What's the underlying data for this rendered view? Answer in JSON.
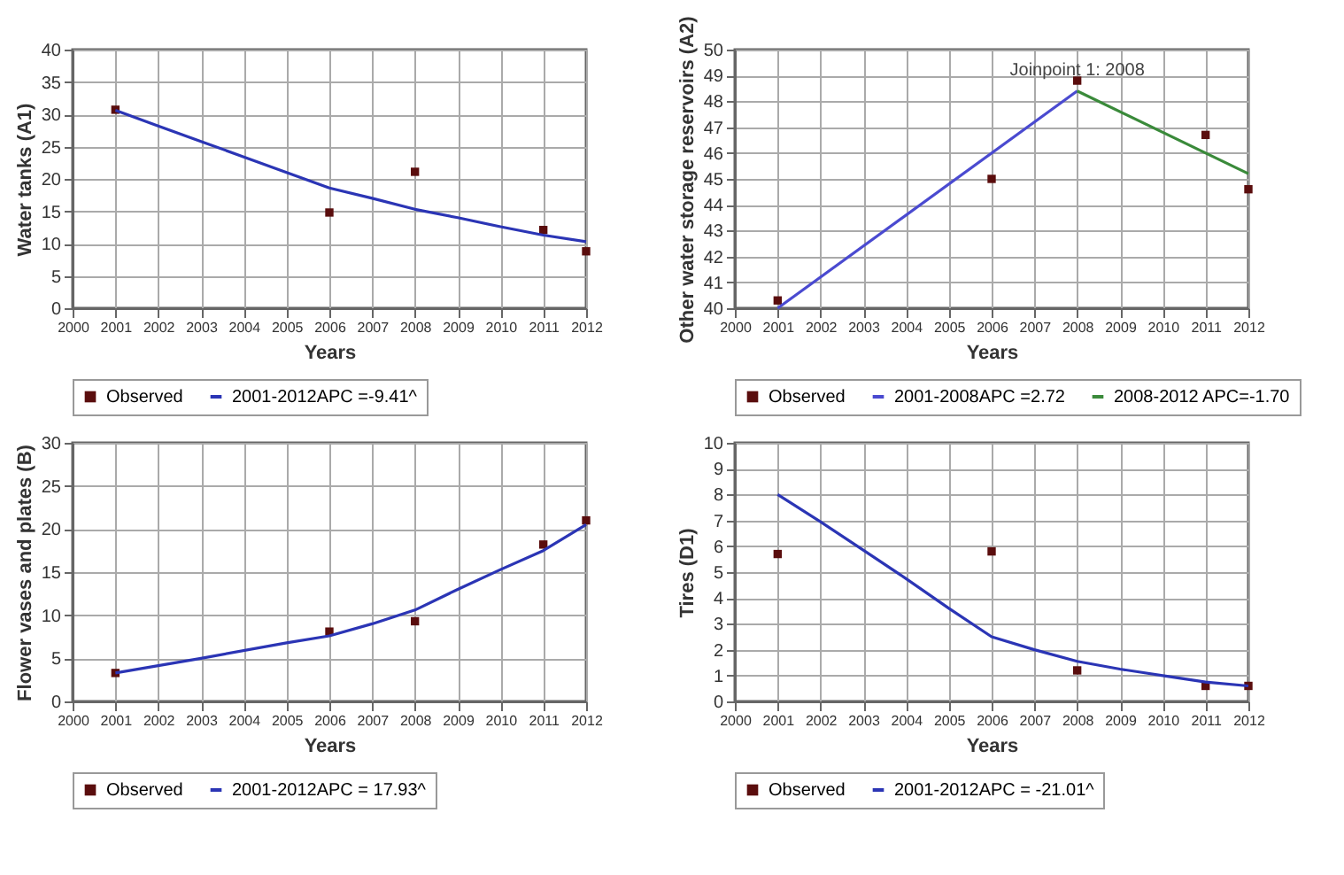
{
  "chart_data": [
    {
      "type": "line",
      "xlabel": "Years",
      "ylabel": "Water tanks (A1)",
      "xlim": [
        2000,
        2012
      ],
      "xticks": [
        2000,
        2001,
        2002,
        2003,
        2004,
        2005,
        2006,
        2007,
        2008,
        2009,
        2010,
        2011,
        2012
      ],
      "ylim": [
        0,
        40
      ],
      "yticks": [
        0,
        5,
        10,
        15,
        20,
        25,
        30,
        35,
        40
      ],
      "grid": true,
      "legend": "bottom",
      "series": [
        {
          "type": "scatter",
          "marker": "square",
          "name": "Observed",
          "color": "#5a0d0d",
          "x": [
            2001,
            2006,
            2008,
            2011,
            2012
          ],
          "values": [
            30.7,
            14.8,
            21.1,
            12.1,
            8.8
          ]
        },
        {
          "type": "line",
          "name": "2001-2012APC =-9.41^",
          "color": "#2b35b5",
          "x": [
            2001,
            2002,
            2003,
            2004,
            2005,
            2006,
            2007,
            2008,
            2009,
            2010,
            2011,
            2012
          ],
          "values": [
            30.6,
            28.2,
            25.8,
            23.4,
            21.0,
            18.6,
            17.0,
            15.3,
            14.0,
            12.6,
            11.3,
            10.3
          ]
        }
      ]
    },
    {
      "type": "line",
      "xlabel": "Years",
      "ylabel": "Other water storage reservoirs (A2)",
      "xlim": [
        2000,
        2012
      ],
      "xticks": [
        2000,
        2001,
        2002,
        2003,
        2004,
        2005,
        2006,
        2007,
        2008,
        2009,
        2010,
        2011,
        2012
      ],
      "ylim": [
        40,
        50
      ],
      "yticks": [
        40,
        41,
        42,
        43,
        44,
        45,
        46,
        47,
        48,
        49,
        50
      ],
      "grid": true,
      "legend": "bottom",
      "annotations": [
        {
          "text": "Joinpoint 1: 2008",
          "x": 2008,
          "y": 48.4
        }
      ],
      "series": [
        {
          "type": "scatter",
          "marker": "square",
          "name": "Observed",
          "color": "#5a0d0d",
          "x": [
            2001,
            2006,
            2008,
            2011,
            2012
          ],
          "values": [
            40.3,
            45.0,
            48.8,
            46.7,
            44.6
          ]
        },
        {
          "type": "line",
          "name": "2001-2008APC =2.72",
          "color": "#4a4ad0",
          "x": [
            2001,
            2008
          ],
          "values": [
            40.0,
            48.4
          ]
        },
        {
          "type": "line",
          "name": "2008-2012 APC=-1.70",
          "color": "#3a8a3a",
          "x": [
            2008,
            2012
          ],
          "values": [
            48.4,
            45.2
          ]
        }
      ]
    },
    {
      "type": "line",
      "xlabel": "Years",
      "ylabel": "Flower vases and plates (B)",
      "xlim": [
        2000,
        2012
      ],
      "xticks": [
        2000,
        2001,
        2002,
        2003,
        2004,
        2005,
        2006,
        2007,
        2008,
        2009,
        2010,
        2011,
        2012
      ],
      "ylim": [
        0,
        30
      ],
      "yticks": [
        0,
        5,
        10,
        15,
        20,
        25,
        30
      ],
      "grid": true,
      "legend": "bottom",
      "series": [
        {
          "type": "scatter",
          "marker": "square",
          "name": "Observed",
          "color": "#5a0d0d",
          "x": [
            2001,
            2006,
            2008,
            2011,
            2012
          ],
          "values": [
            3.3,
            8.1,
            9.3,
            18.2,
            21.0
          ]
        },
        {
          "type": "line",
          "name": "2001-2012APC = 17.93^",
          "color": "#2b35b5",
          "x": [
            2001,
            2003,
            2005,
            2006,
            2007,
            2008,
            2009,
            2010,
            2011,
            2012
          ],
          "values": [
            3.3,
            5.0,
            6.8,
            7.6,
            9.0,
            10.6,
            13.0,
            15.3,
            17.5,
            20.5
          ]
        }
      ]
    },
    {
      "type": "line",
      "xlabel": "Years",
      "ylabel": "Tires (D1)",
      "xlim": [
        2000,
        2012
      ],
      "xticks": [
        2000,
        2001,
        2002,
        2003,
        2004,
        2005,
        2006,
        2007,
        2008,
        2009,
        2010,
        2011,
        2012
      ],
      "ylim": [
        0,
        10
      ],
      "yticks": [
        0,
        1,
        2,
        3,
        4,
        5,
        6,
        7,
        8,
        9,
        10
      ],
      "grid": true,
      "legend": "bottom",
      "series": [
        {
          "type": "scatter",
          "marker": "square",
          "name": "Observed",
          "color": "#5a0d0d",
          "x": [
            2001,
            2006,
            2008,
            2011,
            2012
          ],
          "values": [
            5.7,
            5.8,
            1.2,
            0.6,
            0.6
          ]
        },
        {
          "type": "line",
          "name": "2001-2012APC = -21.01^",
          "color": "#2b35b5",
          "x": [
            2001,
            2002,
            2003,
            2004,
            2005,
            2006,
            2007,
            2008,
            2009,
            2010,
            2011,
            2012
          ],
          "values": [
            8.0,
            6.95,
            5.85,
            4.75,
            3.6,
            2.5,
            2.0,
            1.55,
            1.25,
            1.0,
            0.75,
            0.6
          ]
        }
      ]
    }
  ]
}
